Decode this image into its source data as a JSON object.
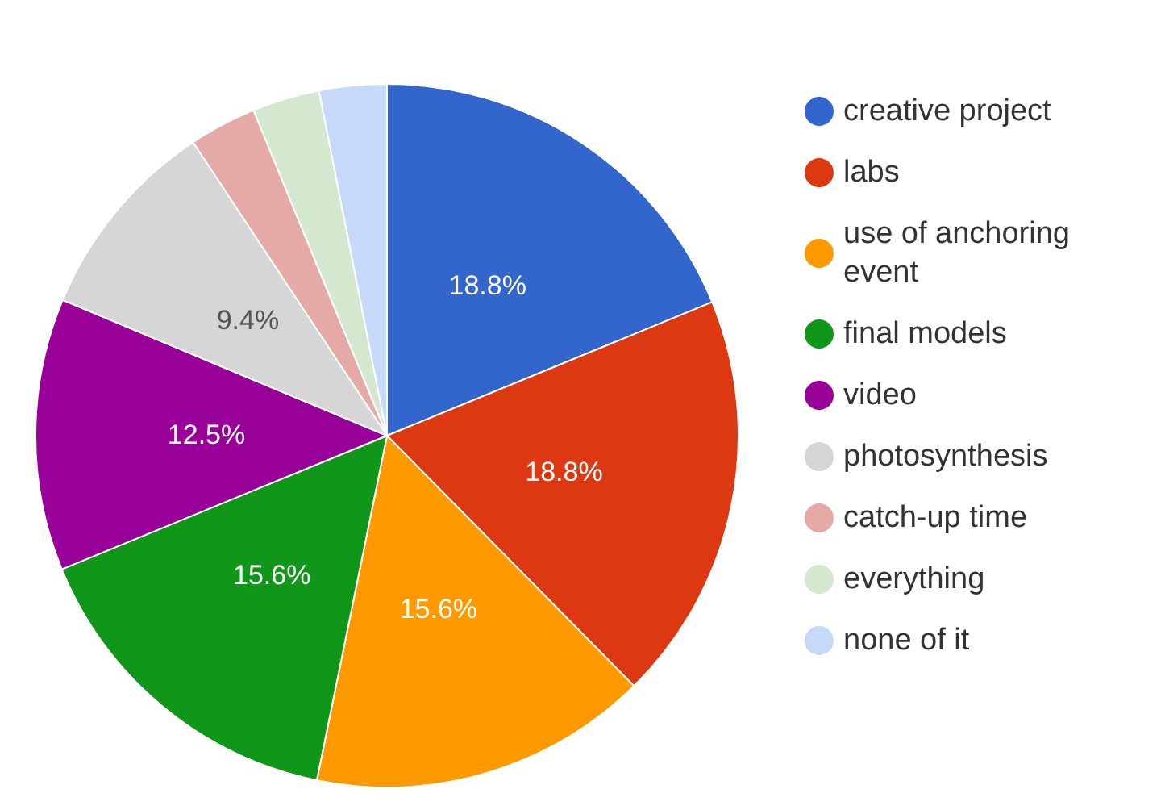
{
  "chart_data": {
    "type": "pie",
    "categories": [
      "creative project",
      "labs",
      "use of anchoring event",
      "final models",
      "video",
      "photosynthesis",
      "catch-up time",
      "everything",
      "none of it"
    ],
    "values": [
      18.8,
      18.8,
      15.6,
      15.6,
      12.5,
      9.4,
      3.1,
      3.1,
      3.1
    ],
    "colors": [
      "#3366cc",
      "#dc3912",
      "#ff9900",
      "#109618",
      "#990099",
      "#d6d6d6",
      "#e6aaa6",
      "#d4e8d0",
      "#c6d9f8"
    ],
    "value_labels": [
      "18.8%",
      "18.8%",
      "15.6%",
      "15.6%",
      "12.5%",
      "9.4%",
      null,
      null,
      null
    ],
    "legend": "right"
  }
}
